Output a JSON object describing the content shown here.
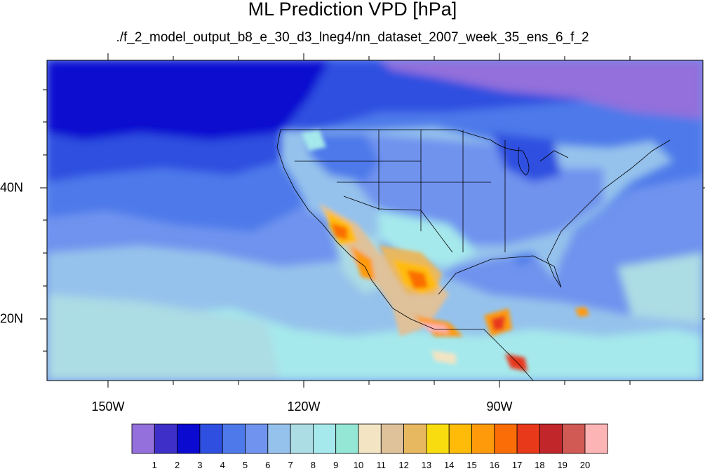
{
  "title": "ML Prediction VPD [hPa]",
  "subtitle": "./f_2_model_output_b8_e_30_d3_lneg4/nn_dataset_2007_week_35_ens_6_f_2",
  "map": {
    "lon_labels": [
      "150W",
      "120W",
      "90W"
    ],
    "lat_labels": [
      "40N",
      "20N"
    ],
    "lon_range": [
      -159.3,
      -60.6
    ],
    "lat_range": [
      10.9,
      58.5
    ]
  },
  "colorbar": {
    "levels": [
      "1",
      "2",
      "3",
      "4",
      "5",
      "6",
      "7",
      "8",
      "9",
      "10",
      "11",
      "12",
      "13",
      "14",
      "15",
      "16",
      "17",
      "18",
      "19",
      "20"
    ],
    "colors": [
      "#9370db",
      "#3d2fc8",
      "#0a0ad0",
      "#2e4fe0",
      "#4d79ea",
      "#6f93ee",
      "#95c2ec",
      "#acdce4",
      "#a6e9ec",
      "#94e6d5",
      "#f3e4c3",
      "#dfc19a",
      "#e8b860",
      "#f8dc10",
      "#ffbb08",
      "#ff9a0a",
      "#fb6d06",
      "#e8391a",
      "#c0262a",
      "#d25a55",
      "#fdb4b4"
    ]
  }
}
